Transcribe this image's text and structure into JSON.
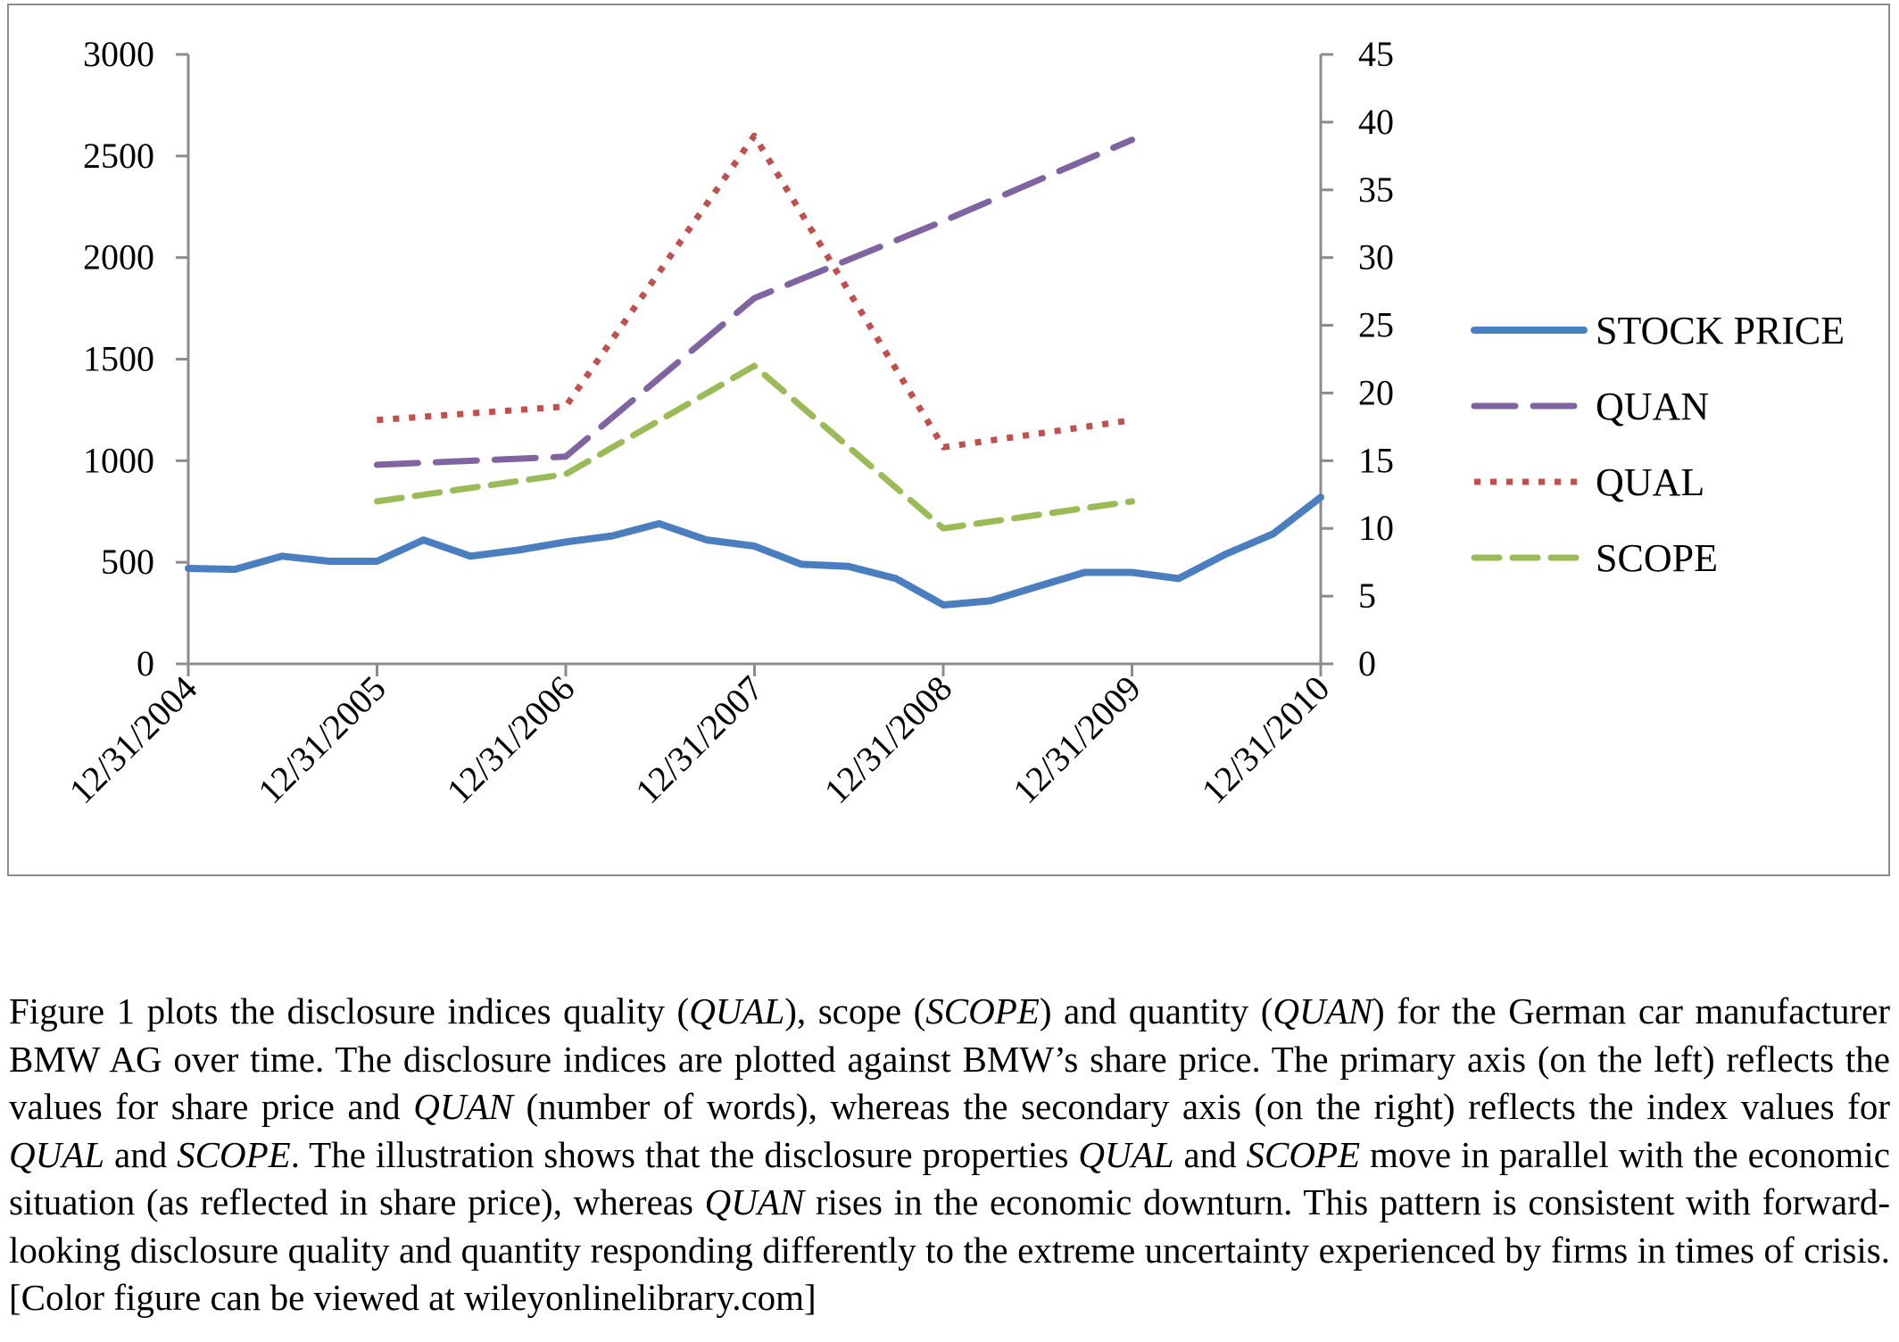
{
  "chart_data": {
    "type": "line",
    "title": "",
    "xlabel": "",
    "ylabel": "",
    "x_tick_labels": [
      "12/31/2004",
      "12/31/2005",
      "12/31/2006",
      "12/31/2007",
      "12/31/2008",
      "12/31/2009",
      "12/31/2010"
    ],
    "x_range": [
      "2004-12-31",
      "2010-12-31"
    ],
    "y_left": {
      "ylim": [
        0,
        3000
      ],
      "ticks": [
        "0",
        "500",
        "1000",
        "1500",
        "2000",
        "2500",
        "3000"
      ]
    },
    "y_right": {
      "ylim": [
        0,
        45
      ],
      "ticks": [
        "0",
        "5",
        "10",
        "15",
        "20",
        "25",
        "30",
        "35",
        "40",
        "45"
      ]
    },
    "grid": false,
    "legend_position": "right",
    "series": [
      {
        "name": "STOCK PRICE",
        "axis": "left",
        "style": "solid",
        "color": "#4a7ebf",
        "x": [
          "2004-12-31",
          "2005-03-31",
          "2005-06-30",
          "2005-09-30",
          "2005-12-31",
          "2006-03-31",
          "2006-06-30",
          "2006-09-30",
          "2006-12-31",
          "2007-03-31",
          "2007-06-30",
          "2007-09-30",
          "2007-12-31",
          "2008-03-31",
          "2008-06-30",
          "2008-09-30",
          "2008-12-31",
          "2009-03-31",
          "2009-06-30",
          "2009-09-30",
          "2009-12-31",
          "2010-03-31",
          "2010-06-30",
          "2010-09-30",
          "2010-12-31"
        ],
        "values": [
          470,
          465,
          530,
          505,
          505,
          610,
          530,
          560,
          600,
          630,
          690,
          610,
          580,
          490,
          480,
          420,
          290,
          310,
          380,
          450,
          450,
          420,
          540,
          640,
          820
        ]
      },
      {
        "name": "QUAN",
        "axis": "left",
        "style": "long-dash",
        "color": "#8064a2",
        "x": [
          "2005-12-31",
          "2006-12-31",
          "2007-12-31",
          "2008-12-31",
          "2009-12-31"
        ],
        "values": [
          980,
          1020,
          1800,
          2180,
          2580
        ]
      },
      {
        "name": "QUAL",
        "axis": "right",
        "style": "dotted",
        "color": "#c0504d",
        "x": [
          "2005-12-31",
          "2006-12-31",
          "2007-12-31",
          "2008-12-31",
          "2009-12-31"
        ],
        "values": [
          18,
          19,
          39,
          16,
          18
        ]
      },
      {
        "name": "SCOPE",
        "axis": "right",
        "style": "dashed",
        "color": "#9bbb59",
        "x": [
          "2005-12-31",
          "2006-12-31",
          "2007-12-31",
          "2008-12-31",
          "2009-12-31"
        ],
        "values": [
          12,
          14,
          22,
          10,
          12
        ]
      }
    ]
  },
  "caption": [
    {
      "t": "Figure 1 plots the disclosure indices quality (",
      "i": false
    },
    {
      "t": "QUAL",
      "i": true
    },
    {
      "t": "), scope (",
      "i": false
    },
    {
      "t": "SCOPE",
      "i": true
    },
    {
      "t": ") and quantity (",
      "i": false
    },
    {
      "t": "QUAN",
      "i": true
    },
    {
      "t": ") for the German car manufacturer BMW AG over time. The disclosure indices are plotted against BMW’s share price. The primary axis (on the left) reflects the values for share price and ",
      "i": false
    },
    {
      "t": "QUAN",
      "i": true
    },
    {
      "t": " (number of words), whereas the secondary axis (on the right) reflects the index values for ",
      "i": false
    },
    {
      "t": "QUAL",
      "i": true
    },
    {
      "t": " and ",
      "i": false
    },
    {
      "t": "SCOPE",
      "i": true
    },
    {
      "t": ". The illustration shows that the disclosure proper­ties ",
      "i": false
    },
    {
      "t": "QUAL",
      "i": true
    },
    {
      "t": " and ",
      "i": false
    },
    {
      "t": "SCOPE",
      "i": true
    },
    {
      "t": " move in parallel with the economic situation (as reflected in share price), whereas ",
      "i": false
    },
    {
      "t": "QUAN",
      "i": true
    },
    {
      "t": " rises in the economic downturn. This pattern is consistent with forward-looking disclosure quality and quantity responding differently to the extreme uncertainty experienced by firms in times of crisis. [Color figure can be viewed at wileyonlinelibrary.com]",
      "i": false
    }
  ]
}
